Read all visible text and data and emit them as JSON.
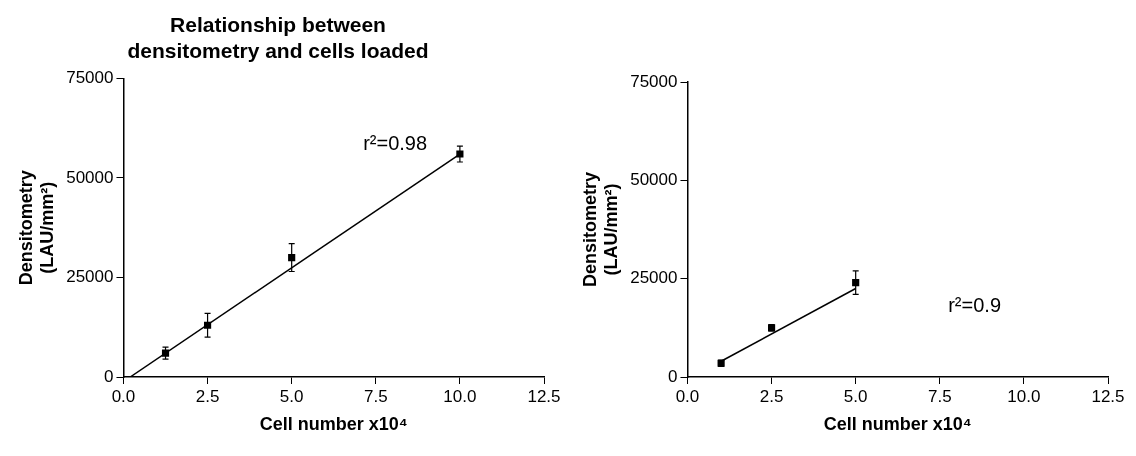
{
  "chart_data": [
    {
      "type": "scatter",
      "title": "Relationship between\ndensitometry and cells loaded",
      "xlabel": "Cell number x10⁴",
      "ylabel": "Densitometry\n(LAU/mm²)",
      "xlim": [
        0,
        12.5
      ],
      "ylim": [
        0,
        75000
      ],
      "yticks": [
        0,
        25000,
        50000,
        75000
      ],
      "grid": false,
      "legend": false,
      "xticks": [
        {
          "value": 0,
          "label": "0.0"
        },
        {
          "value": 2.5,
          "label": "2.5"
        },
        {
          "value": 5,
          "label": "5.0"
        },
        {
          "value": 7.5,
          "label": "7.5"
        },
        {
          "value": 10,
          "label": "10.0"
        },
        {
          "value": 12.5,
          "label": "12.5"
        }
      ],
      "annotations": [
        "r²=0.98"
      ],
      "series": [
        {
          "type": "scatter",
          "marker": "square",
          "color": "#000000",
          "x": [
            1.25,
            2.5,
            5,
            10
          ],
          "values": [
            6000,
            13000,
            30000,
            56000
          ],
          "errors": [
            1500,
            3000,
            3500,
            2000
          ]
        },
        {
          "type": "line",
          "marker": "none",
          "color": "#000000",
          "x": [
            0.2,
            10
          ],
          "values": [
            0,
            56000
          ]
        }
      ]
    },
    {
      "type": "scatter",
      "xlabel": "Cell number x10⁴",
      "ylabel": "Densitometry\n(LAU/mm²)",
      "xlim": [
        0,
        12.5
      ],
      "ylim": [
        0,
        75000
      ],
      "yticks": [
        0,
        25000,
        50000,
        75000
      ],
      "grid": false,
      "legend": false,
      "xticks": [
        {
          "value": 0,
          "label": "0.0"
        },
        {
          "value": 2.5,
          "label": "2.5"
        },
        {
          "value": 5,
          "label": "5.0"
        },
        {
          "value": 7.5,
          "label": "7.5"
        },
        {
          "value": 10,
          "label": "10.0"
        },
        {
          "value": 12.5,
          "label": "12.5"
        }
      ],
      "annotations": [
        "r²=0.9"
      ],
      "series": [
        {
          "type": "scatter",
          "marker": "square",
          "color": "#000000",
          "x": [
            1,
            2.5,
            5
          ],
          "values": [
            3500,
            12500,
            24000
          ],
          "errors": [
            800,
            800,
            3000
          ]
        },
        {
          "type": "line",
          "marker": "none",
          "color": "#000000",
          "x": [
            1,
            5
          ],
          "values": [
            4000,
            22500
          ]
        }
      ]
    }
  ]
}
